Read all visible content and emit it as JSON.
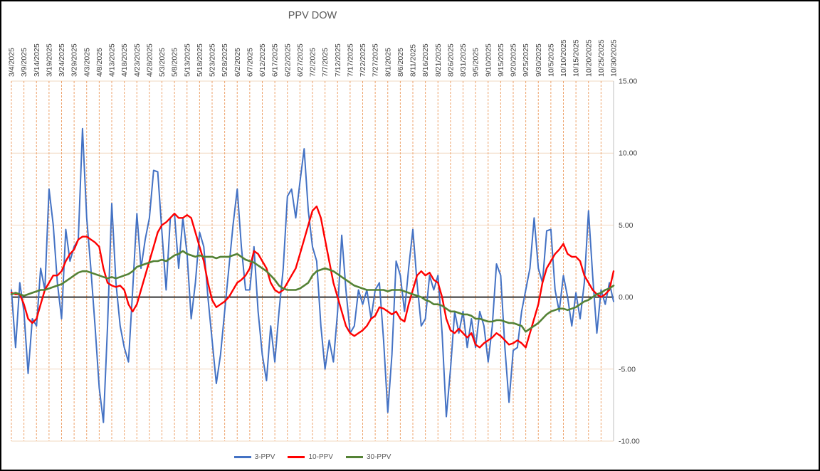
{
  "chart_data": {
    "type": "line",
    "title": "PPV DOW",
    "ylim": [
      -10,
      15
    ],
    "legend_position": "bottom",
    "grid": {
      "vertical": "dashed-orange",
      "horizontal": "solid-light-orange"
    },
    "colors": {
      "vertical_grid": "#EDA26B",
      "horizontal_grid": "#F2D9C2",
      "axis_line": "#BFBFBF",
      "zero_line": "#000000",
      "title_text": "#595959",
      "tick_text": "#404040"
    },
    "y_ticks": [
      {
        "label": "15.00",
        "value": 15
      },
      {
        "label": "10.00",
        "value": 10
      },
      {
        "label": "5.00",
        "value": 5
      },
      {
        "label": "0.00",
        "value": 0
      },
      {
        "label": "-5.00",
        "value": -5
      },
      {
        "label": "-10.00",
        "value": -10
      }
    ],
    "x_tick_labels": [
      "3/4/2025",
      "3/9/2025",
      "3/14/2025",
      "3/19/2025",
      "3/24/2025",
      "3/29/2025",
      "4/3/2025",
      "4/8/2025",
      "4/13/2025",
      "4/18/2025",
      "4/23/2025",
      "4/28/2025",
      "5/3/2025",
      "5/8/2025",
      "5/13/2025",
      "5/18/2025",
      "5/23/2025",
      "5/28/2025",
      "6/2/2025",
      "6/7/2025",
      "6/12/2025",
      "6/17/2025",
      "6/22/2025",
      "6/27/2025",
      "7/2/2025",
      "7/7/2025",
      "7/12/2025",
      "7/17/2025",
      "7/22/2025",
      "7/27/2025",
      "8/1/2025",
      "8/6/2025",
      "8/11/2025",
      "8/16/2025",
      "8/21/2025",
      "8/26/2025",
      "8/31/2025",
      "9/5/2025",
      "9/10/2025",
      "9/15/2025",
      "9/20/2025",
      "9/25/2025",
      "9/30/2025",
      "10/5/2025",
      "10/10/2025",
      "10/15/2025",
      "10/20/2025",
      "10/25/2025",
      "10/30/2025"
    ],
    "points_per_tick_interval": 3,
    "series": [
      {
        "name": "3-PPV",
        "color": "#4472C4",
        "stroke_width": 2,
        "values": [
          0.5,
          -3.5,
          1.0,
          -1.0,
          -5.3,
          -1.5,
          -2.0,
          2.0,
          0.5,
          7.5,
          5.0,
          1.0,
          -1.5,
          4.7,
          2.5,
          3.5,
          4.0,
          11.7,
          5.5,
          2.0,
          -2.0,
          -6.3,
          -8.7,
          -2.0,
          6.5,
          1.0,
          -2.0,
          -3.5,
          -4.5,
          0.5,
          5.8,
          2.0,
          4.0,
          5.5,
          8.8,
          8.7,
          4.5,
          0.5,
          5.5,
          5.8,
          2.0,
          5.5,
          3.0,
          -1.5,
          1.0,
          4.5,
          3.5,
          0.0,
          -3.0,
          -6.0,
          -4.0,
          -1.0,
          2.0,
          5.0,
          7.5,
          3.5,
          0.5,
          0.5,
          3.5,
          -1.0,
          -4.0,
          -5.8,
          -2.0,
          -4.5,
          -1.0,
          2.0,
          7.0,
          7.5,
          5.5,
          8.0,
          10.3,
          6.0,
          3.5,
          2.5,
          -2.0,
          -5.0,
          -3.0,
          -4.5,
          -1.0,
          4.3,
          0.5,
          -2.5,
          -2.0,
          0.5,
          -0.5,
          0.5,
          -1.5,
          0.5,
          1.0,
          -3.0,
          -8.0,
          -4.0,
          2.5,
          1.5,
          -1.0,
          2.0,
          4.7,
          1.0,
          -2.0,
          -1.5,
          1.5,
          0.5,
          1.5,
          -2.5,
          -8.3,
          -5.0,
          -1.0,
          -2.5,
          -1.0,
          -3.5,
          -1.5,
          -3.5,
          -1.0,
          -2.0,
          -4.5,
          -2.0,
          2.3,
          1.5,
          -3.5,
          -7.3,
          -3.7,
          -3.5,
          -1.0,
          0.5,
          2.0,
          5.5,
          2.0,
          1.0,
          4.6,
          4.7,
          0.5,
          -1.0,
          1.5,
          0.0,
          -2.0,
          0.3,
          -1.5,
          1.0,
          6.0,
          1.5,
          -2.5,
          0.5,
          -0.5,
          1.0,
          -0.3
        ]
      },
      {
        "name": "10-PPV",
        "color": "#FF0000",
        "stroke_width": 2.4,
        "values": [
          0.3,
          0.2,
          0.2,
          -0.5,
          -1.5,
          -1.8,
          -1.5,
          -0.5,
          0.5,
          1.0,
          1.5,
          1.5,
          1.8,
          2.5,
          3.0,
          3.3,
          4.0,
          4.2,
          4.2,
          4.0,
          3.8,
          3.5,
          2.0,
          1.0,
          0.8,
          0.7,
          0.8,
          0.5,
          -0.5,
          -1.0,
          -0.5,
          0.5,
          1.5,
          2.5,
          3.5,
          4.5,
          5.0,
          5.2,
          5.5,
          5.8,
          5.5,
          5.5,
          5.7,
          5.5,
          4.5,
          3.5,
          2.5,
          1.0,
          -0.2,
          -0.7,
          -0.5,
          -0.3,
          0.0,
          0.5,
          1.0,
          1.2,
          1.5,
          2.0,
          3.2,
          3.0,
          2.5,
          2.0,
          1.0,
          0.5,
          0.3,
          0.5,
          1.0,
          1.5,
          2.0,
          3.0,
          4.0,
          5.0,
          6.0,
          6.3,
          5.5,
          4.0,
          2.5,
          1.0,
          0.0,
          -1.0,
          -2.0,
          -2.5,
          -2.7,
          -2.5,
          -2.3,
          -2.0,
          -1.5,
          -1.3,
          -0.7,
          -0.8,
          -1.0,
          -1.2,
          -1.0,
          -1.5,
          -1.7,
          -0.5,
          0.5,
          1.5,
          1.8,
          1.5,
          1.7,
          1.2,
          1.0,
          0.0,
          -1.5,
          -2.3,
          -2.5,
          -2.2,
          -2.5,
          -2.8,
          -2.5,
          -3.3,
          -3.5,
          -3.2,
          -3.0,
          -2.8,
          -2.5,
          -2.7,
          -3.0,
          -3.3,
          -3.2,
          -3.0,
          -3.2,
          -3.5,
          -2.5,
          -1.5,
          -0.5,
          1.0,
          2.0,
          2.5,
          3.0,
          3.3,
          3.7,
          3.0,
          2.8,
          2.8,
          2.5,
          1.5,
          1.0,
          0.5,
          0.2,
          0.0,
          0.2,
          0.5,
          1.8
        ]
      },
      {
        "name": "30-PPV",
        "color": "#548235",
        "stroke_width": 2.6,
        "values": [
          0.2,
          0.3,
          0.2,
          0.1,
          0.2,
          0.3,
          0.4,
          0.5,
          0.5,
          0.6,
          0.7,
          0.8,
          0.9,
          1.1,
          1.3,
          1.5,
          1.7,
          1.8,
          1.8,
          1.7,
          1.6,
          1.5,
          1.4,
          1.3,
          1.4,
          1.3,
          1.4,
          1.5,
          1.6,
          1.8,
          2.1,
          2.2,
          2.3,
          2.4,
          2.5,
          2.5,
          2.6,
          2.5,
          2.7,
          2.9,
          3.0,
          3.2,
          3.0,
          2.9,
          2.8,
          2.9,
          2.8,
          2.8,
          2.8,
          2.7,
          2.8,
          2.8,
          2.8,
          2.9,
          3.0,
          2.8,
          2.6,
          2.5,
          2.4,
          2.2,
          2.0,
          1.8,
          1.5,
          1.2,
          0.8,
          0.6,
          0.5,
          0.5,
          0.5,
          0.6,
          0.8,
          1.0,
          1.5,
          1.8,
          1.9,
          2.0,
          1.9,
          1.8,
          1.6,
          1.4,
          1.2,
          1.0,
          0.8,
          0.7,
          0.6,
          0.5,
          0.5,
          0.5,
          0.5,
          0.5,
          0.4,
          0.5,
          0.5,
          0.5,
          0.4,
          0.3,
          0.2,
          0.1,
          0.0,
          -0.2,
          -0.3,
          -0.5,
          -0.5,
          -0.6,
          -0.8,
          -1.0,
          -1.0,
          -1.1,
          -1.2,
          -1.2,
          -1.3,
          -1.5,
          -1.5,
          -1.6,
          -1.7,
          -1.7,
          -1.6,
          -1.6,
          -1.7,
          -1.8,
          -1.8,
          -1.9,
          -2.0,
          -2.4,
          -2.2,
          -2.0,
          -1.8,
          -1.5,
          -1.2,
          -1.0,
          -0.9,
          -0.8,
          -0.8,
          -0.9,
          -0.8,
          -0.7,
          -0.5,
          -0.3,
          -0.2,
          0.0,
          0.2,
          0.3,
          0.5,
          0.6,
          0.8
        ]
      }
    ],
    "zero_line": true
  }
}
